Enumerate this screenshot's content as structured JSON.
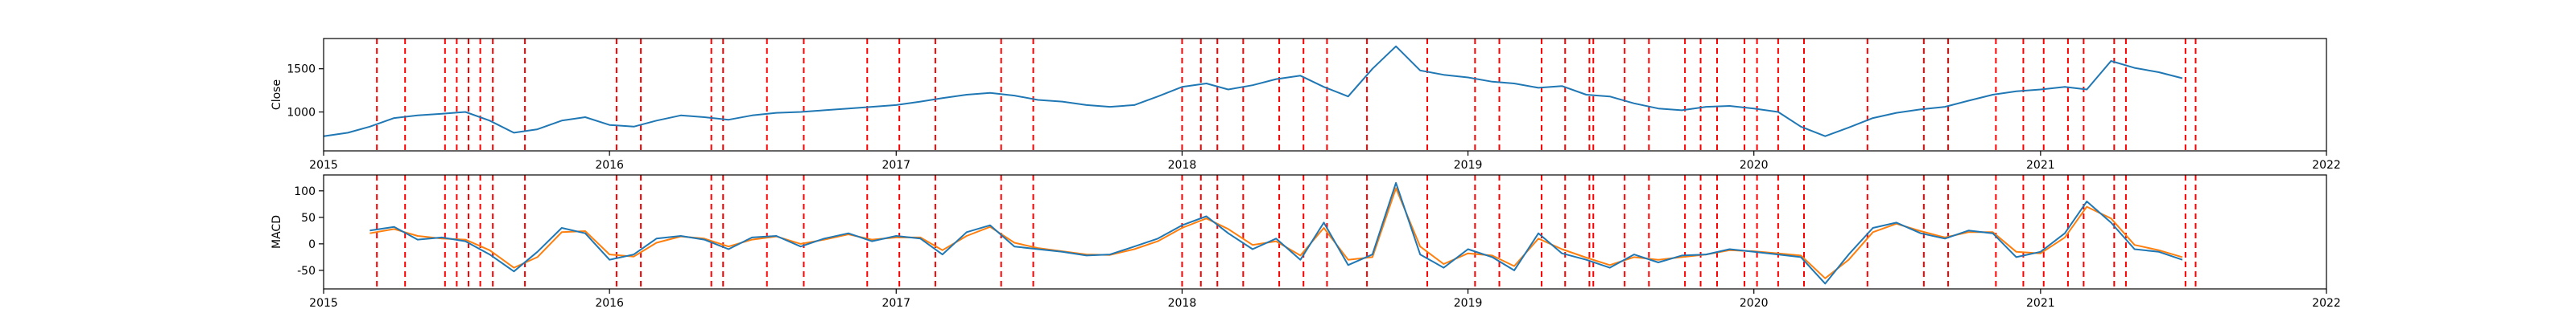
{
  "colors": {
    "close_line": "#1f77b4",
    "macd_line": "#1f77b4",
    "signal_line": "#ff7f0e",
    "event_marker": "#ff0000"
  },
  "chart_data": [
    {
      "type": "line",
      "ylabel": "Close",
      "xlim": [
        "2015-01-01",
        "2022-01-01"
      ],
      "ylim": [
        550,
        1850
      ],
      "x_ticks": [
        "2015",
        "2016",
        "2017",
        "2018",
        "2019",
        "2020",
        "2021",
        "2022"
      ],
      "y_ticks": [
        1000,
        1500
      ],
      "grid": false,
      "series": [
        {
          "key": "close",
          "x": [
            "2015-01-01",
            "2015-02-01",
            "2015-03-01",
            "2015-04-01",
            "2015-05-01",
            "2015-06-01",
            "2015-07-01",
            "2015-08-01",
            "2015-09-01",
            "2015-10-01",
            "2015-11-01",
            "2015-12-01",
            "2016-01-01",
            "2016-02-01",
            "2016-03-01",
            "2016-04-01",
            "2016-05-01",
            "2016-06-01",
            "2016-07-01",
            "2016-08-01",
            "2016-09-01",
            "2016-10-01",
            "2016-11-01",
            "2016-12-01",
            "2017-01-01",
            "2017-02-01",
            "2017-03-01",
            "2017-04-01",
            "2017-05-01",
            "2017-06-01",
            "2017-07-01",
            "2017-08-01",
            "2017-09-01",
            "2017-10-01",
            "2017-11-01",
            "2017-12-01",
            "2018-01-01",
            "2018-02-01",
            "2018-03-01",
            "2018-04-01",
            "2018-05-01",
            "2018-06-01",
            "2018-07-01",
            "2018-08-01",
            "2018-09-01",
            "2018-10-01",
            "2018-11-01",
            "2018-12-01",
            "2019-01-01",
            "2019-02-01",
            "2019-03-01",
            "2019-04-01",
            "2019-05-01",
            "2019-06-01",
            "2019-07-01",
            "2019-08-01",
            "2019-09-01",
            "2019-10-01",
            "2019-11-01",
            "2019-12-01",
            "2020-01-01",
            "2020-02-01",
            "2020-03-01",
            "2020-04-01",
            "2020-05-01",
            "2020-06-01",
            "2020-07-01",
            "2020-08-01",
            "2020-09-01",
            "2020-10-01",
            "2020-11-01",
            "2020-12-01",
            "2021-01-01",
            "2021-02-01",
            "2021-03-01",
            "2021-04-01",
            "2021-05-01",
            "2021-06-01",
            "2021-07-01"
          ],
          "y": [
            720,
            760,
            830,
            930,
            960,
            980,
            1000,
            900,
            760,
            800,
            900,
            940,
            850,
            830,
            900,
            960,
            940,
            910,
            960,
            990,
            1000,
            1020,
            1040,
            1060,
            1080,
            1120,
            1160,
            1200,
            1220,
            1190,
            1140,
            1120,
            1080,
            1060,
            1080,
            1180,
            1290,
            1330,
            1260,
            1310,
            1380,
            1420,
            1290,
            1180,
            1500,
            1760,
            1480,
            1430,
            1400,
            1350,
            1330,
            1280,
            1300,
            1200,
            1180,
            1100,
            1040,
            1020,
            1060,
            1070,
            1040,
            1000,
            830,
            720,
            820,
            930,
            990,
            1030,
            1060,
            1130,
            1200,
            1240,
            1260,
            1290,
            1260,
            1590,
            1510,
            1460,
            1390
          ]
        }
      ]
    },
    {
      "type": "line",
      "ylabel": "MACD",
      "xlim": [
        "2015-01-01",
        "2022-01-01"
      ],
      "ylim": [
        -85,
        130
      ],
      "x_ticks": [
        "2015",
        "2016",
        "2017",
        "2018",
        "2019",
        "2020",
        "2021",
        "2022"
      ],
      "y_ticks": [
        -50,
        0,
        50,
        100
      ],
      "grid": false,
      "series": [
        {
          "key": "macd",
          "x": [
            "2015-03-01",
            "2015-04-01",
            "2015-05-01",
            "2015-06-01",
            "2015-07-01",
            "2015-08-01",
            "2015-09-01",
            "2015-10-01",
            "2015-11-01",
            "2015-12-01",
            "2016-01-01",
            "2016-02-01",
            "2016-03-01",
            "2016-04-01",
            "2016-05-01",
            "2016-06-01",
            "2016-07-01",
            "2016-08-01",
            "2016-09-01",
            "2016-10-01",
            "2016-11-01",
            "2016-12-01",
            "2017-01-01",
            "2017-02-01",
            "2017-03-01",
            "2017-04-01",
            "2017-05-01",
            "2017-06-01",
            "2017-07-01",
            "2017-08-01",
            "2017-09-01",
            "2017-10-01",
            "2017-11-01",
            "2017-12-01",
            "2018-01-01",
            "2018-02-01",
            "2018-03-01",
            "2018-04-01",
            "2018-05-01",
            "2018-06-01",
            "2018-07-01",
            "2018-08-01",
            "2018-09-01",
            "2018-10-01",
            "2018-11-01",
            "2018-12-01",
            "2019-01-01",
            "2019-02-01",
            "2019-03-01",
            "2019-04-01",
            "2019-05-01",
            "2019-06-01",
            "2019-07-01",
            "2019-08-01",
            "2019-09-01",
            "2019-10-01",
            "2019-11-01",
            "2019-12-01",
            "2020-01-01",
            "2020-02-01",
            "2020-03-01",
            "2020-04-01",
            "2020-05-01",
            "2020-06-01",
            "2020-07-01",
            "2020-08-01",
            "2020-09-01",
            "2020-10-01",
            "2020-11-01",
            "2020-12-01",
            "2021-01-01",
            "2021-02-01",
            "2021-03-01",
            "2021-04-01",
            "2021-05-01",
            "2021-06-01",
            "2021-07-01"
          ],
          "y": [
            25,
            32,
            8,
            12,
            5,
            -20,
            -52,
            -15,
            30,
            20,
            -30,
            -20,
            10,
            15,
            8,
            -10,
            12,
            15,
            -5,
            10,
            20,
            5,
            15,
            10,
            -20,
            22,
            35,
            -5,
            -10,
            -15,
            -22,
            -20,
            -5,
            10,
            35,
            52,
            20,
            -10,
            10,
            -30,
            40,
            -40,
            -20,
            115,
            -20,
            -45,
            -10,
            -25,
            -50,
            20,
            -18,
            -30,
            -45,
            -20,
            -35,
            -22,
            -20,
            -10,
            -15,
            -20,
            -25,
            -75,
            -20,
            30,
            40,
            20,
            10,
            25,
            20,
            -25,
            -15,
            20,
            80,
            40,
            -10,
            -15,
            -30
          ]
        },
        {
          "key": "signal",
          "x": [
            "2015-03-01",
            "2015-04-01",
            "2015-05-01",
            "2015-06-01",
            "2015-07-01",
            "2015-08-01",
            "2015-09-01",
            "2015-10-01",
            "2015-11-01",
            "2015-12-01",
            "2016-01-01",
            "2016-02-01",
            "2016-03-01",
            "2016-04-01",
            "2016-05-01",
            "2016-06-01",
            "2016-07-01",
            "2016-08-01",
            "2016-09-01",
            "2016-10-01",
            "2016-11-01",
            "2016-12-01",
            "2017-01-01",
            "2017-02-01",
            "2017-03-01",
            "2017-04-01",
            "2017-05-01",
            "2017-06-01",
            "2017-07-01",
            "2017-08-01",
            "2017-09-01",
            "2017-10-01",
            "2017-11-01",
            "2017-12-01",
            "2018-01-01",
            "2018-02-01",
            "2018-03-01",
            "2018-04-01",
            "2018-05-01",
            "2018-06-01",
            "2018-07-01",
            "2018-08-01",
            "2018-09-01",
            "2018-10-01",
            "2018-11-01",
            "2018-12-01",
            "2019-01-01",
            "2019-02-01",
            "2019-03-01",
            "2019-04-01",
            "2019-05-01",
            "2019-06-01",
            "2019-07-01",
            "2019-08-01",
            "2019-09-01",
            "2019-10-01",
            "2019-11-01",
            "2019-12-01",
            "2020-01-01",
            "2020-02-01",
            "2020-03-01",
            "2020-04-01",
            "2020-05-01",
            "2020-06-01",
            "2020-07-01",
            "2020-08-01",
            "2020-09-01",
            "2020-10-01",
            "2020-11-01",
            "2020-12-01",
            "2021-01-01",
            "2021-02-01",
            "2021-03-01",
            "2021-04-01",
            "2021-05-01",
            "2021-06-01",
            "2021-07-01"
          ],
          "y": [
            20,
            28,
            15,
            10,
            8,
            -12,
            -45,
            -25,
            22,
            24,
            -20,
            -24,
            2,
            14,
            10,
            -5,
            8,
            14,
            0,
            8,
            18,
            8,
            12,
            12,
            -12,
            15,
            32,
            2,
            -8,
            -14,
            -20,
            -21,
            -10,
            5,
            30,
            48,
            28,
            -2,
            5,
            -22,
            30,
            -30,
            -25,
            105,
            -5,
            -38,
            -18,
            -22,
            -42,
            10,
            -10,
            -26,
            -40,
            -25,
            -30,
            -25,
            -20,
            -12,
            -14,
            -18,
            -22,
            -65,
            -30,
            22,
            38,
            24,
            12,
            22,
            22,
            -15,
            -18,
            12,
            70,
            48,
            -2,
            -12,
            -25
          ]
        }
      ]
    }
  ],
  "event_markers": [
    "2015-03-10",
    "2015-04-15",
    "2015-06-05",
    "2015-06-20",
    "2015-07-05",
    "2015-07-20",
    "2015-08-05",
    "2015-09-15",
    "2016-01-10",
    "2016-02-10",
    "2016-05-10",
    "2016-05-25",
    "2016-07-20",
    "2016-09-05",
    "2016-11-25",
    "2017-01-05",
    "2017-02-20",
    "2017-05-15",
    "2017-06-25",
    "2018-01-01",
    "2018-01-25",
    "2018-02-15",
    "2018-03-20",
    "2018-05-05",
    "2018-06-05",
    "2018-07-05",
    "2018-08-25",
    "2018-11-10",
    "2019-01-10",
    "2019-02-10",
    "2019-04-05",
    "2019-05-05",
    "2019-06-05",
    "2019-06-10",
    "2019-07-20",
    "2019-08-20",
    "2019-10-05",
    "2019-10-25",
    "2019-11-15",
    "2019-12-20",
    "2020-01-05",
    "2020-02-01",
    "2020-03-05",
    "2020-05-25",
    "2020-08-05",
    "2020-09-05",
    "2020-11-05",
    "2020-12-10",
    "2021-01-05",
    "2021-02-05",
    "2021-02-25",
    "2021-04-05",
    "2021-04-20",
    "2021-07-05",
    "2021-07-18"
  ]
}
